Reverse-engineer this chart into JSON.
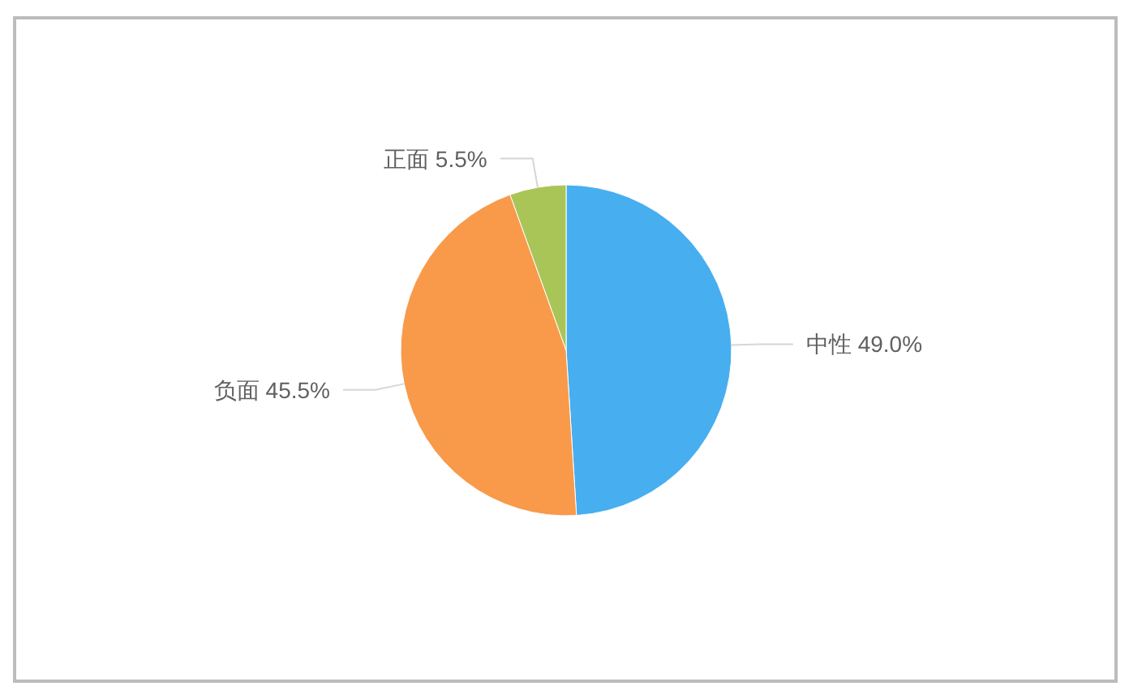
{
  "chart_data": {
    "type": "pie",
    "categories": [
      "中性",
      "负面",
      "正面"
    ],
    "values": [
      49.0,
      45.5,
      5.5
    ],
    "colors": [
      "#47aef0",
      "#f89a4a",
      "#a9c558"
    ],
    "value_labels": [
      "49.0%",
      "45.5%",
      "5.5%"
    ]
  }
}
